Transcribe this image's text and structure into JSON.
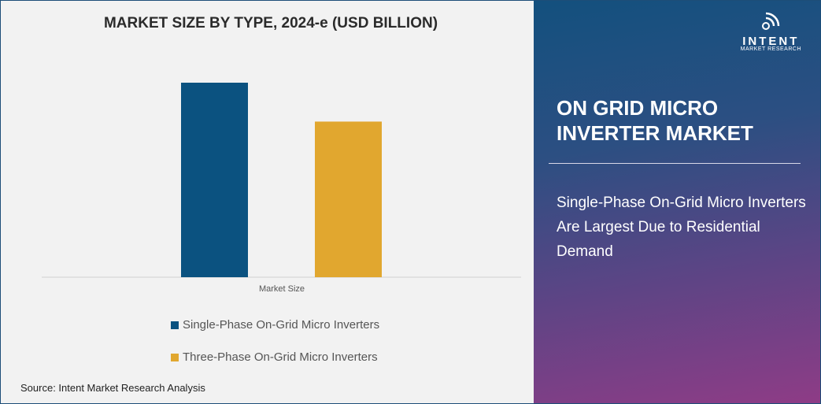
{
  "chart_data": {
    "type": "bar",
    "title": "MARKET SIZE BY TYPE, 2024-e (USD BILLION)",
    "categories": [
      "Market Size"
    ],
    "series": [
      {
        "name": "Single-Phase On-Grid Micro Inverters",
        "values": [
          1.0
        ],
        "color": "#0b5280"
      },
      {
        "name": "Three-Phase On-Grid Micro Inverters",
        "values": [
          0.8
        ],
        "color": "#e1a72f"
      }
    ],
    "ylim": [
      0,
      1.0
    ],
    "grid": false,
    "legend": "bottom",
    "source": "Source: Intent Market Research Analysis"
  },
  "panel": {
    "logo_brand": "INTENT",
    "logo_sub": "MARKET RESEARCH",
    "title": "ON GRID MICRO INVERTER MARKET",
    "description": "Single-Phase On-Grid Micro Inverters Are Largest Due to Residential Demand"
  }
}
